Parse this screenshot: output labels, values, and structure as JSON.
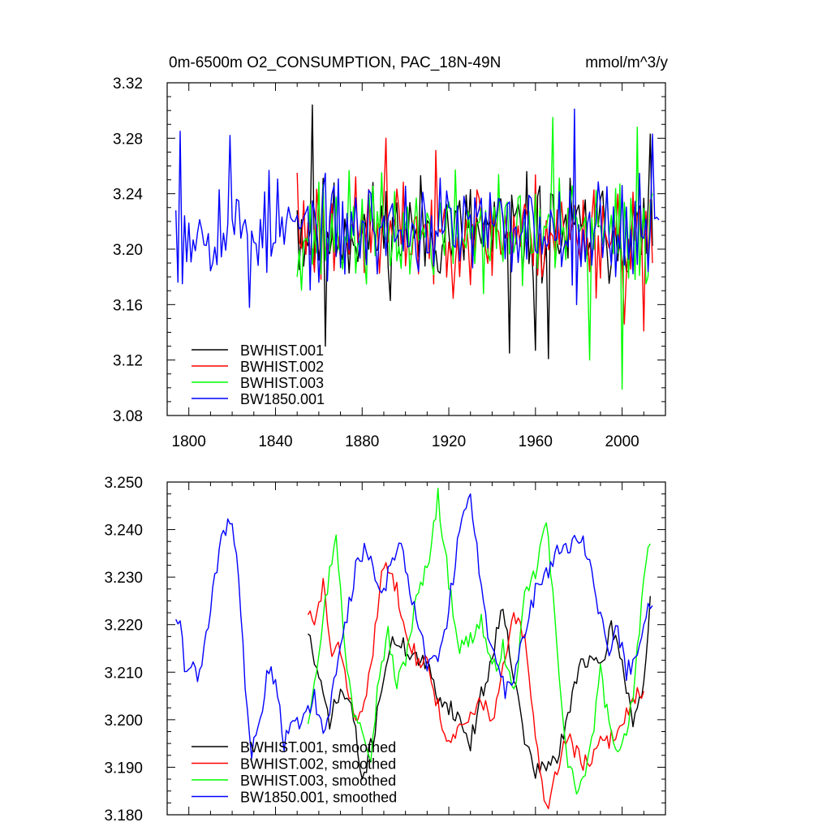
{
  "chart_data": [
    {
      "id": "top",
      "type": "line",
      "title": "0m-6500m O2_CONSUMPTION, PAC_18N-49N",
      "units": "mmol/m^3/y",
      "xlabel": "",
      "ylabel": "",
      "xlim": [
        1790,
        2020
      ],
      "ylim": [
        3.08,
        3.32
      ],
      "xticks": [
        1800,
        1840,
        1880,
        1920,
        1960,
        2000
      ],
      "xtick_labels": [
        "1800",
        "1840",
        "1880",
        "1920",
        "1960",
        "2000"
      ],
      "yticks": [
        3.08,
        3.12,
        3.16,
        3.2,
        3.24,
        3.28,
        3.32
      ],
      "ytick_labels": [
        "3.08",
        "3.12",
        "3.16",
        "3.20",
        "3.24",
        "3.28",
        "3.32"
      ],
      "legend": {
        "placement": "bottom-left",
        "entries": [
          {
            "label": "BWHIST.001",
            "color": "#000000"
          },
          {
            "label": "BWHIST.002",
            "color": "#ff0000"
          },
          {
            "label": "BWHIST.003",
            "color": "#00ff00"
          },
          {
            "label": "BW1850.001",
            "color": "#0000ff"
          }
        ]
      },
      "series": [
        {
          "name": "BWHIST.001",
          "color": "#000000",
          "kind": "annual",
          "start": 1850,
          "end": 2014,
          "mean": 3.212,
          "amp": 0.035,
          "seed": 11,
          "anchors": [
            [
              1850,
              3.228
            ],
            [
              1857,
              3.304
            ],
            [
              1863,
              3.13
            ],
            [
              1948,
              3.125
            ],
            [
              1960,
              3.127
            ],
            [
              1966,
              3.121
            ],
            [
              2013,
              3.283
            ]
          ]
        },
        {
          "name": "BWHIST.002",
          "color": "#ff0000",
          "kind": "annual",
          "start": 1850,
          "end": 2014,
          "mean": 3.212,
          "amp": 0.035,
          "seed": 23,
          "anchors": [
            [
              1850,
              3.255
            ],
            [
              1851,
              3.205
            ],
            [
              1891,
              3.28
            ],
            [
              2001,
              3.146
            ],
            [
              2010,
              3.141
            ],
            [
              2014,
              3.19
            ]
          ]
        },
        {
          "name": "BWHIST.003",
          "color": "#00ff00",
          "kind": "annual",
          "start": 1850,
          "end": 2014,
          "mean": 3.212,
          "amp": 0.035,
          "seed": 37,
          "anchors": [
            [
              1850,
              3.18
            ],
            [
              1968,
              3.295
            ],
            [
              1985,
              3.12
            ],
            [
              2000,
              3.099
            ],
            [
              2007,
              3.288
            ],
            [
              2014,
              3.24
            ]
          ]
        },
        {
          "name": "BW1850.001",
          "color": "#0000ff",
          "kind": "annual",
          "start": 1794,
          "end": 2017,
          "mean": 3.215,
          "amp": 0.032,
          "seed": 53,
          "anchors": [
            [
              1794,
              3.228
            ],
            [
              1796,
              3.285
            ],
            [
              1797,
              3.175
            ],
            [
              1819,
              3.282
            ],
            [
              1828,
              3.158
            ],
            [
              1978,
              3.301
            ],
            [
              2014,
              3.283
            ],
            [
              2016,
              3.223
            ],
            [
              2017,
              3.221
            ]
          ]
        }
      ]
    },
    {
      "id": "bottom",
      "type": "line",
      "title": "",
      "xlabel": "",
      "ylabel": "",
      "xlim": [
        1790,
        2020
      ],
      "ylim": [
        3.18,
        3.25
      ],
      "xticks": [
        1800,
        1840,
        1880,
        1920,
        1960,
        2000
      ],
      "xtick_labels": [
        "",
        "",
        "",
        "",
        "",
        ""
      ],
      "yticks": [
        3.18,
        3.19,
        3.2,
        3.21,
        3.22,
        3.23,
        3.24,
        3.25
      ],
      "ytick_labels": [
        "3.180",
        "3.190",
        "3.200",
        "3.210",
        "3.220",
        "3.230",
        "3.240",
        "3.250"
      ],
      "legend": {
        "placement": "bottom-left",
        "entries": [
          {
            "label": "BWHIST.001, smoothed",
            "color": "#000000"
          },
          {
            "label": "BWHIST.002, smoothed",
            "color": "#ff0000"
          },
          {
            "label": "BWHIST.003, smoothed",
            "color": "#00ff00"
          },
          {
            "label": "BW1850.001, smoothed",
            "color": "#0000ff"
          }
        ]
      },
      "series": [
        {
          "name": "BWHIST.001, smoothed",
          "color": "#000000",
          "kind": "smooth",
          "seed": 71,
          "keypoints": [
            [
              1855,
              3.219
            ],
            [
              1860,
              3.208
            ],
            [
              1865,
              3.2
            ],
            [
              1870,
              3.206
            ],
            [
              1875,
              3.203
            ],
            [
              1880,
              3.187
            ],
            [
              1885,
              3.196
            ],
            [
              1890,
              3.21
            ],
            [
              1895,
              3.217
            ],
            [
              1900,
              3.215
            ],
            [
              1905,
              3.213
            ],
            [
              1910,
              3.211
            ],
            [
              1915,
              3.205
            ],
            [
              1920,
              3.203
            ],
            [
              1925,
              3.2
            ],
            [
              1930,
              3.195
            ],
            [
              1935,
              3.205
            ],
            [
              1940,
              3.213
            ],
            [
              1945,
              3.225
            ],
            [
              1950,
              3.209
            ],
            [
              1955,
              3.196
            ],
            [
              1960,
              3.189
            ],
            [
              1965,
              3.19
            ],
            [
              1970,
              3.192
            ],
            [
              1975,
              3.2
            ],
            [
              1980,
              3.212
            ],
            [
              1985,
              3.213
            ],
            [
              1990,
              3.21
            ],
            [
              1995,
              3.22
            ],
            [
              2000,
              3.212
            ],
            [
              2005,
              3.2
            ],
            [
              2010,
              3.207
            ],
            [
              2013,
              3.226
            ]
          ]
        },
        {
          "name": "BWHIST.002, smoothed",
          "color": "#ff0000",
          "kind": "smooth",
          "seed": 83,
          "keypoints": [
            [
              1855,
              3.223
            ],
            [
              1858,
              3.219
            ],
            [
              1862,
              3.229
            ],
            [
              1866,
              3.213
            ],
            [
              1870,
              3.215
            ],
            [
              1875,
              3.203
            ],
            [
              1880,
              3.2
            ],
            [
              1885,
              3.215
            ],
            [
              1890,
              3.233
            ],
            [
              1895,
              3.229
            ],
            [
              1900,
              3.22
            ],
            [
              1905,
              3.213
            ],
            [
              1910,
              3.212
            ],
            [
              1915,
              3.203
            ],
            [
              1920,
              3.194
            ],
            [
              1925,
              3.198
            ],
            [
              1930,
              3.2
            ],
            [
              1935,
              3.205
            ],
            [
              1940,
              3.199
            ],
            [
              1945,
              3.21
            ],
            [
              1950,
              3.222
            ],
            [
              1955,
              3.217
            ],
            [
              1960,
              3.196
            ],
            [
              1965,
              3.181
            ],
            [
              1970,
              3.19
            ],
            [
              1975,
              3.197
            ],
            [
              1980,
              3.192
            ],
            [
              1985,
              3.19
            ],
            [
              1990,
              3.195
            ],
            [
              1995,
              3.196
            ],
            [
              2000,
              3.199
            ],
            [
              2005,
              3.205
            ],
            [
              2010,
              3.206
            ]
          ]
        },
        {
          "name": "BWHIST.003, smoothed",
          "color": "#00ff00",
          "kind": "smooth",
          "seed": 97,
          "keypoints": [
            [
              1855,
              3.2
            ],
            [
              1860,
              3.215
            ],
            [
              1865,
              3.231
            ],
            [
              1868,
              3.24
            ],
            [
              1872,
              3.214
            ],
            [
              1876,
              3.202
            ],
            [
              1880,
              3.199
            ],
            [
              1884,
              3.193
            ],
            [
              1888,
              3.21
            ],
            [
              1892,
              3.218
            ],
            [
              1896,
              3.207
            ],
            [
              1900,
              3.213
            ],
            [
              1905,
              3.225
            ],
            [
              1910,
              3.232
            ],
            [
              1915,
              3.247
            ],
            [
              1920,
              3.229
            ],
            [
              1925,
              3.215
            ],
            [
              1930,
              3.217
            ],
            [
              1935,
              3.221
            ],
            [
              1940,
              3.21
            ],
            [
              1945,
              3.215
            ],
            [
              1950,
              3.205
            ],
            [
              1955,
              3.225
            ],
            [
              1960,
              3.231
            ],
            [
              1965,
              3.242
            ],
            [
              1970,
              3.215
            ],
            [
              1975,
              3.19
            ],
            [
              1980,
              3.185
            ],
            [
              1985,
              3.192
            ],
            [
              1990,
              3.21
            ],
            [
              1995,
              3.196
            ],
            [
              2000,
              3.194
            ],
            [
              2005,
              3.205
            ],
            [
              2010,
              3.23
            ],
            [
              2013,
              3.237
            ]
          ]
        },
        {
          "name": "BW1850.001, smoothed",
          "color": "#0000ff",
          "kind": "smooth",
          "seed": 109,
          "keypoints": [
            [
              1794,
              3.222
            ],
            [
              1796,
              3.221
            ],
            [
              1798,
              3.212
            ],
            [
              1801,
              3.211
            ],
            [
              1804,
              3.209
            ],
            [
              1808,
              3.217
            ],
            [
              1812,
              3.229
            ],
            [
              1816,
              3.24
            ],
            [
              1820,
              3.242
            ],
            [
              1823,
              3.23
            ],
            [
              1826,
              3.207
            ],
            [
              1829,
              3.193
            ],
            [
              1832,
              3.197
            ],
            [
              1836,
              3.21
            ],
            [
              1840,
              3.209
            ],
            [
              1844,
              3.195
            ],
            [
              1848,
              3.2
            ],
            [
              1853,
              3.2
            ],
            [
              1858,
              3.205
            ],
            [
              1862,
              3.197
            ],
            [
              1866,
              3.205
            ],
            [
              1870,
              3.215
            ],
            [
              1874,
              3.224
            ],
            [
              1878,
              3.234
            ],
            [
              1882,
              3.236
            ],
            [
              1886,
              3.23
            ],
            [
              1890,
              3.227
            ],
            [
              1894,
              3.234
            ],
            [
              1898,
              3.238
            ],
            [
              1902,
              3.227
            ],
            [
              1906,
              3.22
            ],
            [
              1910,
              3.212
            ],
            [
              1914,
              3.212
            ],
            [
              1918,
              3.217
            ],
            [
              1922,
              3.23
            ],
            [
              1926,
              3.243
            ],
            [
              1930,
              3.246
            ],
            [
              1934,
              3.232
            ],
            [
              1938,
              3.217
            ],
            [
              1942,
              3.212
            ],
            [
              1946,
              3.206
            ],
            [
              1950,
              3.21
            ],
            [
              1955,
              3.218
            ],
            [
              1960,
              3.227
            ],
            [
              1965,
              3.23
            ],
            [
              1970,
              3.236
            ],
            [
              1975,
              3.236
            ],
            [
              1980,
              3.239
            ],
            [
              1985,
              3.234
            ],
            [
              1990,
              3.221
            ],
            [
              1994,
              3.215
            ],
            [
              1998,
              3.219
            ],
            [
              2002,
              3.21
            ],
            [
              2006,
              3.213
            ],
            [
              2010,
              3.221
            ],
            [
              2014,
              3.224
            ]
          ]
        }
      ]
    }
  ]
}
